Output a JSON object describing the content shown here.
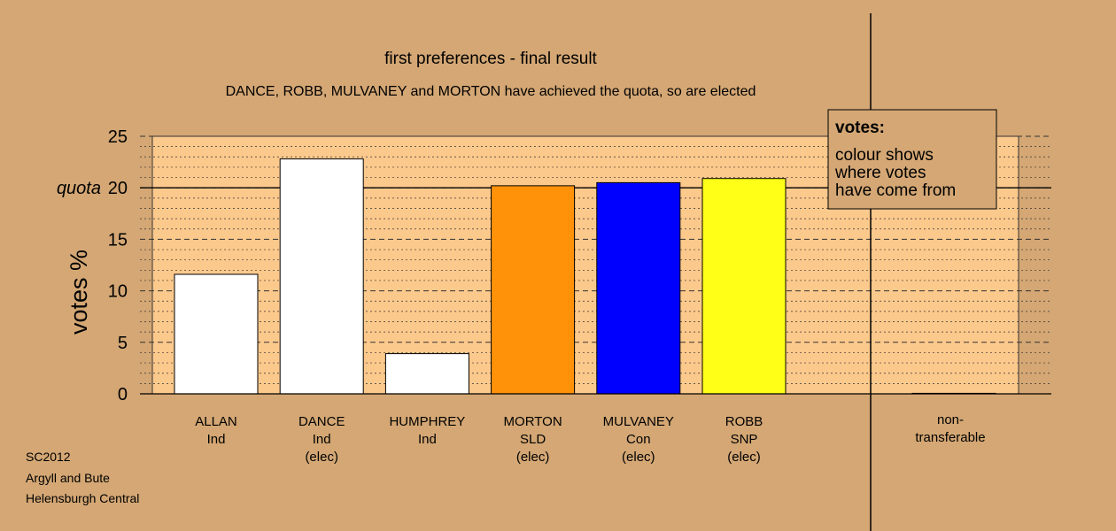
{
  "colors": {
    "background": "#d4a774",
    "plot_area": "#fcc98c",
    "white": "#ffffff",
    "SLD": "#ff9209",
    "Con": "#0000ff",
    "SNP": "#ffff18"
  },
  "chart_data": {
    "type": "bar",
    "title": "first preferences - final result",
    "subtitle": "DANCE, ROBB, MULVANEY and MORTON have achieved the quota, so are elected",
    "ylabel": "votes %",
    "ylim": [
      0,
      25
    ],
    "yticks": [
      0,
      5,
      10,
      15,
      20,
      25
    ],
    "quota": 20,
    "quota_label": "quota",
    "grid": true,
    "categories": [
      {
        "name": "ALLAN",
        "party": "Ind",
        "status": "",
        "value": 11.6,
        "color": "#ffffff"
      },
      {
        "name": "DANCE",
        "party": "Ind",
        "status": "(elec)",
        "value": 22.8,
        "color": "#ffffff"
      },
      {
        "name": "HUMPHREY",
        "party": "Ind",
        "status": "",
        "value": 3.9,
        "color": "#ffffff"
      },
      {
        "name": "MORTON",
        "party": "SLD",
        "status": "(elec)",
        "value": 20.2,
        "color": "#ff9209"
      },
      {
        "name": "MULVANEY",
        "party": "Con",
        "status": "(elec)",
        "value": 20.5,
        "color": "#0000ff"
      },
      {
        "name": "ROBB",
        "party": "SNP",
        "status": "(elec)",
        "value": 20.9,
        "color": "#ffff18"
      }
    ],
    "non_transferable": {
      "label_line1": "non-",
      "label_line2": "transferable",
      "value": 0.05
    },
    "legend": {
      "title": "votes:",
      "lines": [
        "colour shows",
        "where votes",
        "have come from"
      ],
      "position": "top-right"
    }
  },
  "footer": {
    "line1": "SC2012",
    "line2": "Argyll and Bute",
    "line3": "Helensburgh Central"
  }
}
